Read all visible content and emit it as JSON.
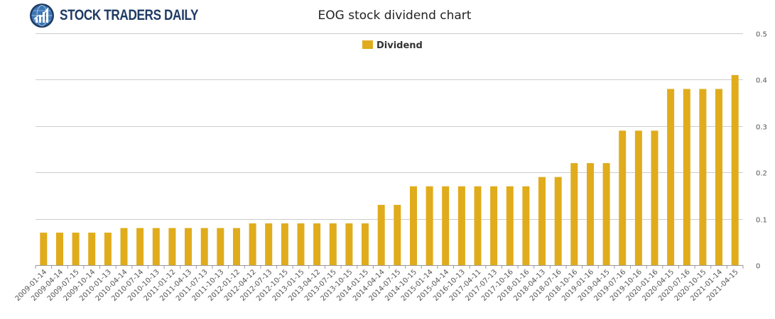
{
  "brand": {
    "name": "STOCK TRADERS DAILY",
    "logo_icon": "globe-chart-icon"
  },
  "colors": {
    "bar": "#E0AC1C",
    "grid": "#cccccc",
    "axis": "#999999",
    "brand": "#1f3b63"
  },
  "chart_data": {
    "type": "bar",
    "title": "EOG stock dividend chart",
    "xlabel": "",
    "ylabel": "",
    "ylim": [
      0,
      0.5
    ],
    "yticks": [
      0,
      0.1,
      0.2,
      0.3,
      0.4,
      0.5
    ],
    "ytick_labels": [
      "0",
      "0.1",
      "0.2",
      "0.3",
      "0.4",
      "0.5"
    ],
    "y_axis_side": "right",
    "grid": true,
    "legend_position": "top-center",
    "categories": [
      "2009-01-14",
      "2009-04-14",
      "2009-07-15",
      "2009-10-14",
      "2010-01-13",
      "2010-04-14",
      "2010-07-14",
      "2010-10-13",
      "2011-01-12",
      "2011-04-13",
      "2011-07-13",
      "2011-10-13",
      "2012-01-12",
      "2012-04-12",
      "2012-07-13",
      "2012-10-15",
      "2013-01-15",
      "2013-04-12",
      "2013-07-15",
      "2013-10-15",
      "2014-01-15",
      "2014-04-14",
      "2014-07-15",
      "2014-10-15",
      "2015-01-14",
      "2015-04-14",
      "2016-10-13",
      "2017-04-11",
      "2017-07-13",
      "2017-10-16",
      "2018-01-16",
      "2018-04-13",
      "2018-07-16",
      "2018-10-16",
      "2019-01-16",
      "2019-04-15",
      "2019-07-16",
      "2019-10-16",
      "2020-01-16",
      "2020-04-15",
      "2020-07-16",
      "2020-10-15",
      "2021-01-14",
      "2021-04-15"
    ],
    "series": [
      {
        "name": "Dividend",
        "values": [
          0.07,
          0.07,
          0.07,
          0.07,
          0.07,
          0.08,
          0.08,
          0.08,
          0.08,
          0.08,
          0.08,
          0.08,
          0.08,
          0.09,
          0.09,
          0.09,
          0.09,
          0.09,
          0.09,
          0.09,
          0.09,
          0.13,
          0.13,
          0.17,
          0.17,
          0.17,
          0.17,
          0.17,
          0.17,
          0.17,
          0.17,
          0.19,
          0.19,
          0.22,
          0.22,
          0.22,
          0.29,
          0.29,
          0.29,
          0.38,
          0.38,
          0.38,
          0.38,
          0.41
        ]
      }
    ]
  }
}
